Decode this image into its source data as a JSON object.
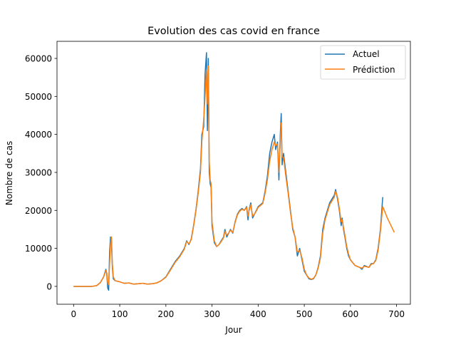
{
  "chart_data": {
    "type": "line",
    "title": "Evolution des cas covid en france",
    "xlabel": "Jour",
    "ylabel": "Nombre de cas",
    "xlim": [
      -36,
      730
    ],
    "ylim": [
      -4700,
      64500
    ],
    "xticks": [
      0,
      100,
      200,
      300,
      400,
      500,
      600,
      700
    ],
    "yticks": [
      0,
      10000,
      20000,
      30000,
      40000,
      50000,
      60000
    ],
    "xtick_labels": [
      "0",
      "100",
      "200",
      "300",
      "400",
      "500",
      "600",
      "700"
    ],
    "ytick_labels": [
      "0",
      "10000",
      "20000",
      "30000",
      "40000",
      "50000",
      "60000"
    ],
    "grid": false,
    "legend_position": "top-right",
    "series": [
      {
        "name": "Actuel",
        "color": "#1f77b4",
        "points": [
          [
            0,
            0
          ],
          [
            20,
            0
          ],
          [
            40,
            0
          ],
          [
            50,
            200
          ],
          [
            58,
            1000
          ],
          [
            65,
            2500
          ],
          [
            70,
            4500
          ],
          [
            72,
            3000
          ],
          [
            74,
            -500
          ],
          [
            76,
            -1000
          ],
          [
            78,
            9000
          ],
          [
            80,
            13000
          ],
          [
            82,
            12000
          ],
          [
            84,
            5000
          ],
          [
            86,
            2000
          ],
          [
            90,
            1500
          ],
          [
            100,
            1200
          ],
          [
            110,
            800
          ],
          [
            120,
            900
          ],
          [
            130,
            600
          ],
          [
            140,
            700
          ],
          [
            150,
            800
          ],
          [
            160,
            600
          ],
          [
            170,
            700
          ],
          [
            180,
            900
          ],
          [
            190,
            1500
          ],
          [
            200,
            2500
          ],
          [
            210,
            4500
          ],
          [
            220,
            6500
          ],
          [
            230,
            8000
          ],
          [
            240,
            10000
          ],
          [
            245,
            12000
          ],
          [
            250,
            11000
          ],
          [
            255,
            12500
          ],
          [
            260,
            16000
          ],
          [
            265,
            20000
          ],
          [
            270,
            25000
          ],
          [
            275,
            31000
          ],
          [
            278,
            40000
          ],
          [
            282,
            42000
          ],
          [
            285,
            56000
          ],
          [
            288,
            61500
          ],
          [
            290,
            41000
          ],
          [
            292,
            60000
          ],
          [
            294,
            30000
          ],
          [
            296,
            27000
          ],
          [
            298,
            26000
          ],
          [
            300,
            16000
          ],
          [
            305,
            11500
          ],
          [
            310,
            10500
          ],
          [
            315,
            11000
          ],
          [
            320,
            12000
          ],
          [
            325,
            13000
          ],
          [
            328,
            15000
          ],
          [
            332,
            13000
          ],
          [
            336,
            14000
          ],
          [
            340,
            15000
          ],
          [
            345,
            14000
          ],
          [
            350,
            17000
          ],
          [
            355,
            19000
          ],
          [
            360,
            20000
          ],
          [
            365,
            20500
          ],
          [
            370,
            20000
          ],
          [
            375,
            21000
          ],
          [
            378,
            17500
          ],
          [
            380,
            20000
          ],
          [
            384,
            22000
          ],
          [
            388,
            18000
          ],
          [
            392,
            19000
          ],
          [
            396,
            20000
          ],
          [
            400,
            21000
          ],
          [
            405,
            21500
          ],
          [
            410,
            22000
          ],
          [
            415,
            25000
          ],
          [
            420,
            29000
          ],
          [
            425,
            35000
          ],
          [
            430,
            38000
          ],
          [
            435,
            40000
          ],
          [
            438,
            36000
          ],
          [
            442,
            38000
          ],
          [
            445,
            28000
          ],
          [
            448,
            40000
          ],
          [
            450,
            45500
          ],
          [
            452,
            32000
          ],
          [
            455,
            35000
          ],
          [
            460,
            30000
          ],
          [
            465,
            25000
          ],
          [
            470,
            20000
          ],
          [
            475,
            15000
          ],
          [
            480,
            13000
          ],
          [
            485,
            8000
          ],
          [
            490,
            10000
          ],
          [
            495,
            7000
          ],
          [
            500,
            4000
          ],
          [
            505,
            3000
          ],
          [
            510,
            2000
          ],
          [
            515,
            1800
          ],
          [
            520,
            2000
          ],
          [
            525,
            3000
          ],
          [
            530,
            5000
          ],
          [
            535,
            8000
          ],
          [
            540,
            15000
          ],
          [
            545,
            18000
          ],
          [
            550,
            20000
          ],
          [
            555,
            22000
          ],
          [
            560,
            23000
          ],
          [
            565,
            24000
          ],
          [
            568,
            25500
          ],
          [
            572,
            23000
          ],
          [
            576,
            20000
          ],
          [
            580,
            16000
          ],
          [
            582,
            18000
          ],
          [
            585,
            15000
          ],
          [
            588,
            13000
          ],
          [
            592,
            10000
          ],
          [
            596,
            8000
          ],
          [
            600,
            7000
          ],
          [
            610,
            5500
          ],
          [
            620,
            5000
          ],
          [
            625,
            4500
          ],
          [
            630,
            5500
          ],
          [
            640,
            5000
          ],
          [
            645,
            6000
          ],
          [
            650,
            6000
          ],
          [
            655,
            7000
          ],
          [
            660,
            10000
          ],
          [
            665,
            15000
          ],
          [
            668,
            20000
          ],
          [
            670,
            23500
          ]
        ]
      },
      {
        "name": "Prédiction",
        "color": "#ff7f0e",
        "points": [
          [
            0,
            0
          ],
          [
            20,
            0
          ],
          [
            40,
            0
          ],
          [
            50,
            200
          ],
          [
            58,
            1000
          ],
          [
            65,
            2500
          ],
          [
            70,
            4200
          ],
          [
            72,
            3500
          ],
          [
            74,
            800
          ],
          [
            76,
            500
          ],
          [
            78,
            6000
          ],
          [
            80,
            11000
          ],
          [
            82,
            13000
          ],
          [
            84,
            6000
          ],
          [
            86,
            2500
          ],
          [
            90,
            1500
          ],
          [
            100,
            1200
          ],
          [
            110,
            800
          ],
          [
            120,
            900
          ],
          [
            130,
            600
          ],
          [
            140,
            700
          ],
          [
            150,
            800
          ],
          [
            160,
            600
          ],
          [
            170,
            700
          ],
          [
            180,
            900
          ],
          [
            190,
            1500
          ],
          [
            200,
            2400
          ],
          [
            210,
            4300
          ],
          [
            220,
            6300
          ],
          [
            230,
            7800
          ],
          [
            240,
            9800
          ],
          [
            245,
            11800
          ],
          [
            250,
            11200
          ],
          [
            255,
            12300
          ],
          [
            260,
            15800
          ],
          [
            265,
            19800
          ],
          [
            270,
            24500
          ],
          [
            275,
            30000
          ],
          [
            278,
            38000
          ],
          [
            282,
            44000
          ],
          [
            285,
            50000
          ],
          [
            288,
            57000
          ],
          [
            290,
            48000
          ],
          [
            292,
            58000
          ],
          [
            294,
            33000
          ],
          [
            296,
            28000
          ],
          [
            298,
            27000
          ],
          [
            300,
            17000
          ],
          [
            305,
            12000
          ],
          [
            310,
            10500
          ],
          [
            315,
            11000
          ],
          [
            320,
            11800
          ],
          [
            325,
            12800
          ],
          [
            328,
            14500
          ],
          [
            332,
            13500
          ],
          [
            336,
            14000
          ],
          [
            340,
            14800
          ],
          [
            345,
            14200
          ],
          [
            350,
            16800
          ],
          [
            355,
            18800
          ],
          [
            360,
            19800
          ],
          [
            365,
            20300
          ],
          [
            370,
            20000
          ],
          [
            375,
            20800
          ],
          [
            378,
            18500
          ],
          [
            380,
            19800
          ],
          [
            384,
            21500
          ],
          [
            388,
            18500
          ],
          [
            392,
            19000
          ],
          [
            396,
            19800
          ],
          [
            400,
            20800
          ],
          [
            405,
            21300
          ],
          [
            410,
            21800
          ],
          [
            415,
            24500
          ],
          [
            420,
            28000
          ],
          [
            425,
            33000
          ],
          [
            430,
            36000
          ],
          [
            435,
            38000
          ],
          [
            438,
            37000
          ],
          [
            442,
            37500
          ],
          [
            445,
            30000
          ],
          [
            448,
            38000
          ],
          [
            450,
            43000
          ],
          [
            452,
            34000
          ],
          [
            455,
            34000
          ],
          [
            460,
            29000
          ],
          [
            465,
            24500
          ],
          [
            470,
            19500
          ],
          [
            475,
            15500
          ],
          [
            480,
            13000
          ],
          [
            485,
            9000
          ],
          [
            490,
            9500
          ],
          [
            495,
            7500
          ],
          [
            500,
            4500
          ],
          [
            505,
            3000
          ],
          [
            510,
            2200
          ],
          [
            515,
            1900
          ],
          [
            520,
            2100
          ],
          [
            525,
            3000
          ],
          [
            530,
            4800
          ],
          [
            535,
            7500
          ],
          [
            540,
            14000
          ],
          [
            545,
            17500
          ],
          [
            550,
            19500
          ],
          [
            555,
            21500
          ],
          [
            560,
            22500
          ],
          [
            565,
            23500
          ],
          [
            568,
            25000
          ],
          [
            572,
            23500
          ],
          [
            576,
            20500
          ],
          [
            580,
            17000
          ],
          [
            582,
            17500
          ],
          [
            585,
            15500
          ],
          [
            588,
            13500
          ],
          [
            592,
            10500
          ],
          [
            596,
            8500
          ],
          [
            600,
            7000
          ],
          [
            610,
            5500
          ],
          [
            620,
            5000
          ],
          [
            625,
            4800
          ],
          [
            630,
            5300
          ],
          [
            640,
            5000
          ],
          [
            645,
            5800
          ],
          [
            650,
            6000
          ],
          [
            655,
            6800
          ],
          [
            660,
            9500
          ],
          [
            665,
            14500
          ],
          [
            668,
            18500
          ],
          [
            670,
            21000
          ],
          [
            675,
            19500
          ],
          [
            680,
            18000
          ],
          [
            690,
            15500
          ],
          [
            695,
            14200
          ]
        ]
      }
    ]
  }
}
